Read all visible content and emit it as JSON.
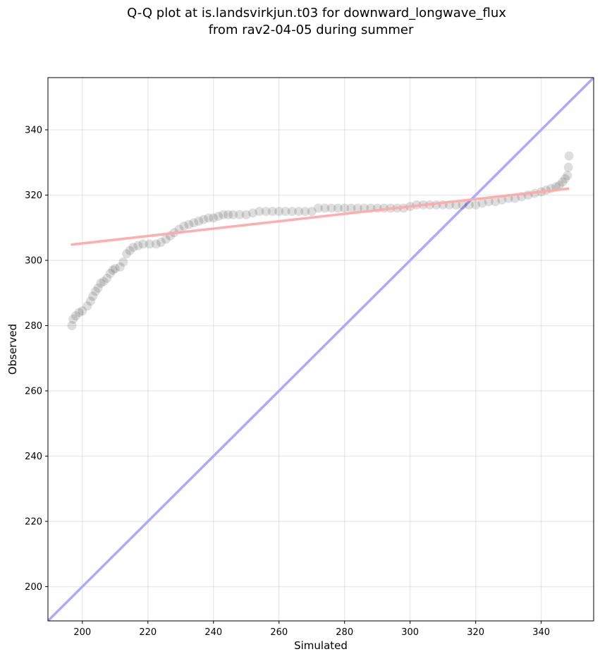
{
  "chart_data": {
    "type": "scatter",
    "title_line1": "Q-Q plot at is.landsvirkjun.t03 for downward_longwave_flux",
    "title_line2": "from rav2-04-05 during summer",
    "xlabel": "Simulated",
    "ylabel": "Observed",
    "xlim": [
      189.5,
      356
    ],
    "ylim": [
      189.5,
      356
    ],
    "xticks": [
      200,
      220,
      240,
      260,
      280,
      300,
      320,
      340
    ],
    "yticks": [
      200,
      220,
      240,
      260,
      280,
      300,
      320,
      340
    ],
    "grid": true,
    "colors": {
      "points": "#000000",
      "identity_line": "#aaaaff",
      "fit_line": "#ffaaaa"
    },
    "identity_line": {
      "x": [
        189.5,
        356
      ],
      "y": [
        189.5,
        356
      ]
    },
    "fit_line": {
      "x": [
        196.5,
        348.5
      ],
      "y": [
        304.8,
        322.0
      ]
    },
    "points": {
      "x": [
        196.8,
        197.2,
        198.0,
        199.0,
        200.0,
        201.5,
        202.5,
        203.2,
        204.0,
        204.8,
        205.6,
        206.5,
        207.5,
        208.5,
        209.3,
        210.0,
        211.5,
        212.5,
        213.5,
        214.5,
        215.5,
        217.0,
        218.5,
        220.5,
        222.5,
        224.0,
        225.5,
        226.8,
        228.0,
        229.5,
        231.0,
        232.5,
        234.0,
        235.5,
        237.0,
        238.5,
        240.0,
        241.5,
        243.0,
        244.5,
        246.0,
        248.0,
        250.0,
        252.0,
        254.0,
        256.0,
        258.0,
        260.0,
        262.0,
        264.0,
        266.0,
        268.0,
        270.0,
        272.0,
        274.0,
        276.0,
        278.0,
        280.0,
        282.0,
        284.0,
        286.0,
        288.0,
        290.0,
        292.0,
        294.0,
        296.0,
        298.0,
        300.0,
        302.0,
        304.0,
        306.0,
        308.0,
        310.0,
        312.0,
        314.0,
        316.0,
        318.0,
        320.0,
        322.0,
        324.0,
        326.0,
        328.0,
        330.0,
        332.0,
        334.0,
        336.0,
        338.0,
        340.0,
        341.5,
        343.0,
        344.5,
        345.5,
        346.5,
        347.3,
        348.0,
        348.3,
        348.5
      ],
      "y": [
        280.0,
        282.0,
        283.0,
        284.0,
        284.5,
        286.0,
        287.5,
        289.0,
        290.5,
        291.5,
        293.0,
        293.5,
        294.5,
        296.0,
        297.0,
        297.5,
        298.0,
        299.5,
        302.0,
        303.0,
        304.0,
        304.5,
        305.0,
        305.0,
        305.0,
        305.5,
        306.5,
        307.5,
        308.5,
        309.5,
        310.5,
        311.0,
        311.5,
        312.0,
        312.5,
        313.0,
        313.0,
        313.5,
        314.0,
        314.0,
        314.0,
        314.0,
        314.0,
        314.5,
        315.0,
        315.0,
        315.0,
        315.0,
        315.0,
        315.0,
        315.0,
        315.0,
        315.0,
        316.0,
        316.0,
        316.0,
        316.0,
        316.0,
        316.0,
        316.0,
        316.0,
        316.0,
        316.0,
        316.0,
        316.0,
        316.0,
        316.0,
        316.5,
        317.0,
        317.0,
        317.0,
        317.0,
        317.0,
        317.0,
        317.0,
        317.0,
        317.0,
        317.0,
        317.5,
        318.0,
        318.0,
        318.5,
        319.0,
        319.0,
        319.5,
        320.0,
        320.5,
        321.0,
        321.5,
        322.0,
        322.5,
        323.0,
        324.0,
        325.0,
        326.0,
        328.5,
        332.0
      ]
    }
  }
}
